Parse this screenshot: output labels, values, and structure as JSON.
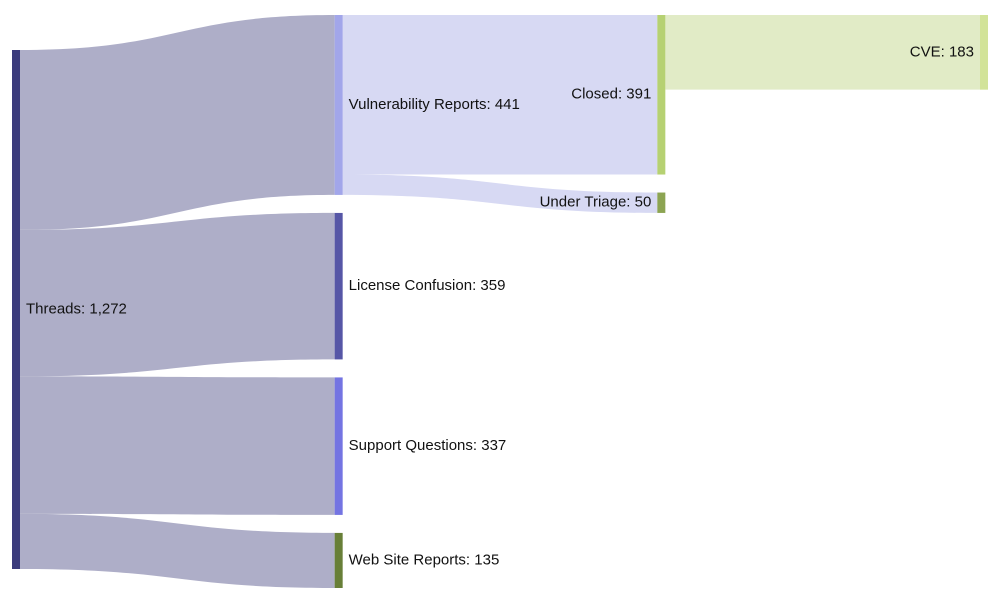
{
  "chart_data": {
    "type": "sankey",
    "nodes": [
      {
        "label": "Threads: 1,272",
        "value": 1272,
        "color": "#3b3b7c"
      },
      {
        "label": "Vulnerability Reports: 441",
        "value": 441,
        "color": "#a2a6ea"
      },
      {
        "label": "License Confusion: 359",
        "value": 359,
        "color": "#5656a6"
      },
      {
        "label": "Support Questions: 337",
        "value": 337,
        "color": "#7474e2"
      },
      {
        "label": "Web Site Reports: 135",
        "value": 135,
        "color": "#687f38"
      },
      {
        "label": "Closed: 391",
        "value": 391,
        "color": "#b6d172"
      },
      {
        "label": "Under Triage: 50",
        "value": 50,
        "color": "#8ca452"
      },
      {
        "label": "CVE: 183",
        "value": 183,
        "color": "#d2e399"
      }
    ],
    "links": [
      {
        "source": 0,
        "target": 1,
        "value": 441,
        "color": "#aeaec8"
      },
      {
        "source": 0,
        "target": 2,
        "value": 359,
        "color": "#aeaec8"
      },
      {
        "source": 0,
        "target": 3,
        "value": 337,
        "color": "#aeaec8"
      },
      {
        "source": 0,
        "target": 4,
        "value": 135,
        "color": "#aeaec8"
      },
      {
        "source": 1,
        "target": 5,
        "value": 391,
        "color": "#d7d9f3"
      },
      {
        "source": 1,
        "target": 6,
        "value": 50,
        "color": "#d7d9f3"
      },
      {
        "source": 5,
        "target": 7,
        "value": 183,
        "color": "#e1ebc6"
      }
    ]
  }
}
